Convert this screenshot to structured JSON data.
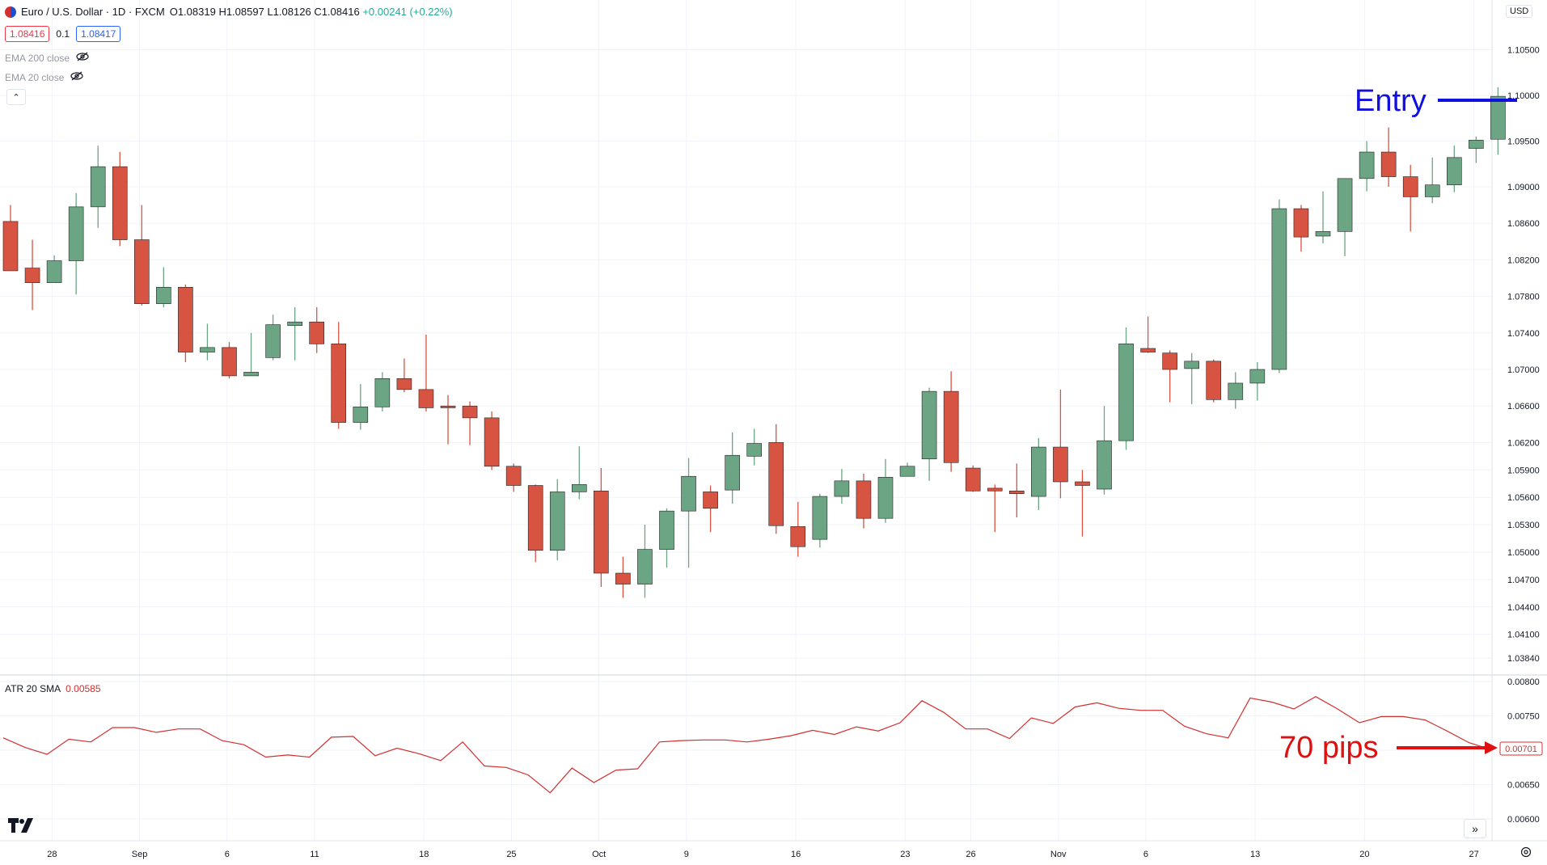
{
  "header": {
    "symbol": "Euro / U.S. Dollar · 1D · FXCM",
    "open": "O1.08319",
    "high": "H1.08597",
    "low": "L1.08126",
    "close": "C1.08416",
    "change": "+0.00241 (+0.22%)",
    "sell_price": "1.08416",
    "spread": "0.1",
    "buy_price": "1.08417",
    "currency": "USD"
  },
  "indicators": {
    "ema200": "EMA 200 close",
    "ema20": "EMA 20 close",
    "atr_label": "ATR 20 SMA",
    "atr_value": "0.00585",
    "atr_last_tag": "0.00701"
  },
  "annotations": {
    "entry": "Entry",
    "pips": "70 pips"
  },
  "colors": {
    "up": "#6ba583",
    "down": "#d75442",
    "atr_line": "#d32f2f",
    "entry": "#1010e0",
    "pips": "#e01010",
    "grid": "#f0f3fa"
  },
  "chart_data": [
    {
      "type": "candlestick",
      "title": "Euro / U.S. Dollar · 1D · FXCM",
      "y_ticks": [
        "1.10500",
        "1.10000",
        "1.09500",
        "1.09000",
        "1.08600",
        "1.08200",
        "1.07800",
        "1.07400",
        "1.07000",
        "1.06600",
        "1.06200",
        "1.05900",
        "1.05600",
        "1.05300",
        "1.05000",
        "1.04700",
        "1.04400",
        "1.04100",
        "1.03840"
      ],
      "x_ticks": [
        "28",
        "Sep",
        "6",
        "11",
        "18",
        "25",
        "Oct",
        "9",
        "16",
        "23",
        "26",
        "Nov",
        "6",
        "13",
        "20",
        "27"
      ],
      "candles": [
        {
          "o": 1.0862,
          "h": 1.088,
          "l": 1.0808,
          "c": 1.0808
        },
        {
          "o": 1.0811,
          "h": 1.0842,
          "l": 1.0765,
          "c": 1.0795
        },
        {
          "o": 1.0795,
          "h": 1.0825,
          "l": 1.0795,
          "c": 1.0819
        },
        {
          "o": 1.0819,
          "h": 1.0893,
          "l": 1.0782,
          "c": 1.0878
        },
        {
          "o": 1.0878,
          "h": 1.0945,
          "l": 1.0855,
          "c": 1.0922
        },
        {
          "o": 1.0922,
          "h": 1.0938,
          "l": 1.0835,
          "c": 1.0842
        },
        {
          "o": 1.0842,
          "h": 1.088,
          "l": 1.077,
          "c": 1.0772
        },
        {
          "o": 1.0772,
          "h": 1.0812,
          "l": 1.0768,
          "c": 1.079
        },
        {
          "o": 1.079,
          "h": 1.0793,
          "l": 1.0708,
          "c": 1.0719
        },
        {
          "o": 1.0719,
          "h": 1.075,
          "l": 1.071,
          "c": 1.0724
        },
        {
          "o": 1.0724,
          "h": 1.073,
          "l": 1.069,
          "c": 1.0693
        },
        {
          "o": 1.0693,
          "h": 1.074,
          "l": 1.0695,
          "c": 1.0697
        },
        {
          "o": 1.0713,
          "h": 1.076,
          "l": 1.071,
          "c": 1.0749
        },
        {
          "o": 1.0748,
          "h": 1.0768,
          "l": 1.071,
          "c": 1.0752
        },
        {
          "o": 1.0752,
          "h": 1.0768,
          "l": 1.0718,
          "c": 1.0728
        },
        {
          "o": 1.0728,
          "h": 1.0752,
          "l": 1.0635,
          "c": 1.0642
        },
        {
          "o": 1.0642,
          "h": 1.0684,
          "l": 1.0634,
          "c": 1.0659
        },
        {
          "o": 1.0659,
          "h": 1.0697,
          "l": 1.0654,
          "c": 1.069
        },
        {
          "o": 1.069,
          "h": 1.0712,
          "l": 1.0675,
          "c": 1.0678
        },
        {
          "o": 1.0678,
          "h": 1.0738,
          "l": 1.0654,
          "c": 1.0658
        },
        {
          "o": 1.066,
          "h": 1.0672,
          "l": 1.0618,
          "c": 1.0658
        },
        {
          "o": 1.066,
          "h": 1.0665,
          "l": 1.0617,
          "c": 1.0647
        },
        {
          "o": 1.0647,
          "h": 1.0654,
          "l": 1.059,
          "c": 1.0594
        },
        {
          "o": 1.0594,
          "h": 1.0597,
          "l": 1.0566,
          "c": 1.0573
        },
        {
          "o": 1.0573,
          "h": 1.0574,
          "l": 1.0489,
          "c": 1.0502
        },
        {
          "o": 1.0502,
          "h": 1.058,
          "l": 1.0491,
          "c": 1.0566
        },
        {
          "o": 1.0566,
          "h": 1.0616,
          "l": 1.0558,
          "c": 1.0574
        },
        {
          "o": 1.0567,
          "h": 1.0592,
          "l": 1.0462,
          "c": 1.0477
        },
        {
          "o": 1.0477,
          "h": 1.0495,
          "l": 1.045,
          "c": 1.0465
        },
        {
          "o": 1.0465,
          "h": 1.053,
          "l": 1.045,
          "c": 1.0503
        },
        {
          "o": 1.0503,
          "h": 1.0548,
          "l": 1.0483,
          "c": 1.0545
        },
        {
          "o": 1.0545,
          "h": 1.0603,
          "l": 1.0483,
          "c": 1.0583
        },
        {
          "o": 1.0566,
          "h": 1.0573,
          "l": 1.0522,
          "c": 1.0548
        },
        {
          "o": 1.0568,
          "h": 1.0631,
          "l": 1.0553,
          "c": 1.0606
        },
        {
          "o": 1.0605,
          "h": 1.0635,
          "l": 1.0595,
          "c": 1.0619
        },
        {
          "o": 1.062,
          "h": 1.064,
          "l": 1.052,
          "c": 1.0529
        },
        {
          "o": 1.0528,
          "h": 1.0555,
          "l": 1.0495,
          "c": 1.0506
        },
        {
          "o": 1.0514,
          "h": 1.0564,
          "l": 1.0505,
          "c": 1.0561
        },
        {
          "o": 1.0561,
          "h": 1.0591,
          "l": 1.0553,
          "c": 1.0578
        },
        {
          "o": 1.0578,
          "h": 1.0586,
          "l": 1.0526,
          "c": 1.0537
        },
        {
          "o": 1.0537,
          "h": 1.0602,
          "l": 1.0532,
          "c": 1.0582
        },
        {
          "o": 1.0583,
          "h": 1.0598,
          "l": 1.0583,
          "c": 1.0594
        },
        {
          "o": 1.0602,
          "h": 1.068,
          "l": 1.0578,
          "c": 1.0676
        },
        {
          "o": 1.0676,
          "h": 1.0698,
          "l": 1.0588,
          "c": 1.0598
        },
        {
          "o": 1.0592,
          "h": 1.0595,
          "l": 1.0566,
          "c": 1.0567
        },
        {
          "o": 1.057,
          "h": 1.0574,
          "l": 1.0522,
          "c": 1.0567
        },
        {
          "o": 1.0567,
          "h": 1.0597,
          "l": 1.0538,
          "c": 1.0564
        },
        {
          "o": 1.0561,
          "h": 1.0625,
          "l": 1.0546,
          "c": 1.0615
        },
        {
          "o": 1.0615,
          "h": 1.0678,
          "l": 1.0559,
          "c": 1.0577
        },
        {
          "o": 1.0577,
          "h": 1.059,
          "l": 1.0517,
          "c": 1.0573
        },
        {
          "o": 1.0569,
          "h": 1.066,
          "l": 1.0563,
          "c": 1.0622
        },
        {
          "o": 1.0622,
          "h": 1.0746,
          "l": 1.0612,
          "c": 1.0728
        },
        {
          "o": 1.0723,
          "h": 1.0758,
          "l": 1.0718,
          "c": 1.0719
        },
        {
          "o": 1.0718,
          "h": 1.0721,
          "l": 1.0664,
          "c": 1.07
        },
        {
          "o": 1.0701,
          "h": 1.0718,
          "l": 1.0662,
          "c": 1.0709
        },
        {
          "o": 1.0709,
          "h": 1.0711,
          "l": 1.0664,
          "c": 1.0667
        },
        {
          "o": 1.0667,
          "h": 1.0697,
          "l": 1.0657,
          "c": 1.0685
        },
        {
          "o": 1.0685,
          "h": 1.0708,
          "l": 1.0666,
          "c": 1.07
        },
        {
          "o": 1.07,
          "h": 1.0886,
          "l": 1.0696,
          "c": 1.0876
        },
        {
          "o": 1.0876,
          "h": 1.088,
          "l": 1.0829,
          "c": 1.0845
        },
        {
          "o": 1.0846,
          "h": 1.0895,
          "l": 1.0838,
          "c": 1.0851
        },
        {
          "o": 1.0851,
          "h": 1.0909,
          "l": 1.0824,
          "c": 1.0909
        },
        {
          "o": 1.0909,
          "h": 1.095,
          "l": 1.0895,
          "c": 1.0938
        },
        {
          "o": 1.0938,
          "h": 1.0965,
          "l": 1.09,
          "c": 1.0911
        },
        {
          "o": 1.0911,
          "h": 1.0924,
          "l": 1.0851,
          "c": 1.0889
        },
        {
          "o": 1.0889,
          "h": 1.0932,
          "l": 1.0882,
          "c": 1.0902
        },
        {
          "o": 1.0902,
          "h": 1.0945,
          "l": 1.0894,
          "c": 1.0932
        },
        {
          "o": 1.0942,
          "h": 1.0955,
          "l": 1.0926,
          "c": 1.0951
        },
        {
          "o": 1.0952,
          "h": 1.1009,
          "l": 1.0935,
          "c": 1.0999
        }
      ]
    },
    {
      "type": "line",
      "title": "ATR 20 SMA",
      "y_ticks": [
        "0.00800",
        "0.00750",
        "0.00700",
        "0.00650",
        "0.00600"
      ],
      "series": [
        {
          "name": "ATR 20 SMA",
          "values": [
            0.00718,
            0.00704,
            0.00694,
            0.00716,
            0.00712,
            0.00733,
            0.00733,
            0.00726,
            0.00731,
            0.00731,
            0.00714,
            0.00708,
            0.0069,
            0.00693,
            0.0069,
            0.00719,
            0.0072,
            0.00692,
            0.00703,
            0.00695,
            0.00685,
            0.00712,
            0.00677,
            0.00675,
            0.00664,
            0.00638,
            0.00674,
            0.00653,
            0.00671,
            0.00673,
            0.00712,
            0.00714,
            0.00715,
            0.00715,
            0.00712,
            0.00716,
            0.00721,
            0.00729,
            0.00723,
            0.00734,
            0.00728,
            0.0074,
            0.00772,
            0.00755,
            0.00731,
            0.00731,
            0.00717,
            0.00747,
            0.00739,
            0.00763,
            0.00769,
            0.00761,
            0.00758,
            0.00758,
            0.00735,
            0.00724,
            0.00718,
            0.00776,
            0.0077,
            0.0076,
            0.00778,
            0.0076,
            0.0074,
            0.00749,
            0.00749,
            0.00744,
            0.00728,
            0.00711,
            0.00701
          ]
        }
      ]
    }
  ]
}
